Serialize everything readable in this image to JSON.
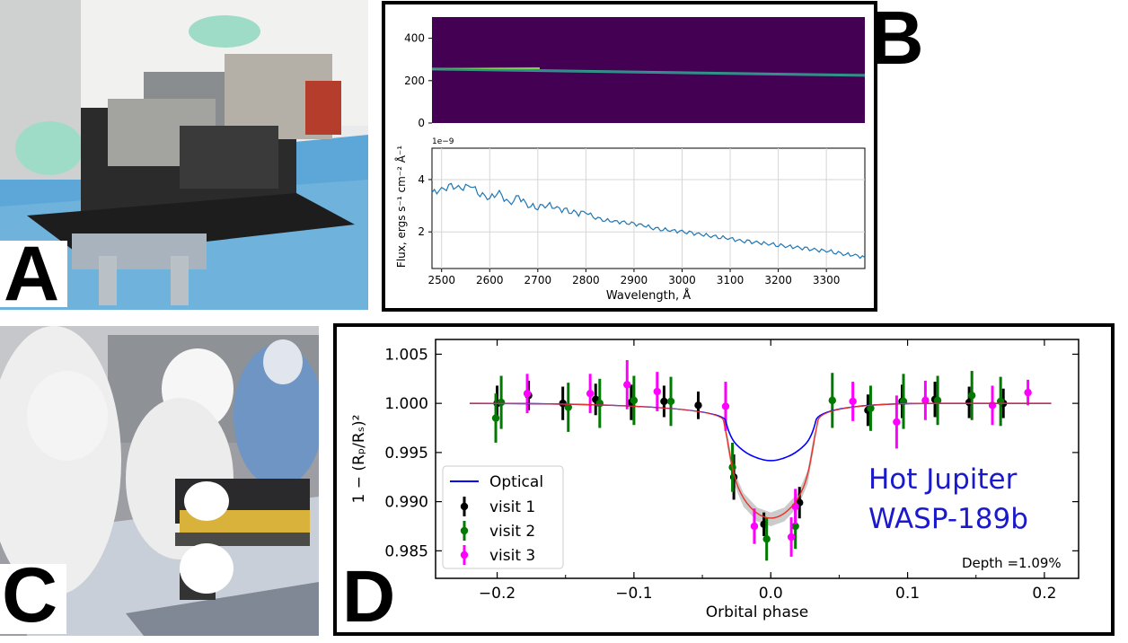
{
  "panels": {
    "a": {
      "letter": "A"
    },
    "b": {
      "letter": "B"
    },
    "c": {
      "letter": "C"
    },
    "d": {
      "letter": "D"
    }
  },
  "chart_data": [
    {
      "type": "heatmap",
      "panel": "B-top",
      "colormap": "viridis",
      "ylim": [
        0,
        500
      ],
      "yticks": [
        "0",
        "200",
        "400"
      ],
      "trace": {
        "y_start": 255,
        "y_end": 225
      }
    },
    {
      "type": "line",
      "panel": "B-bottom",
      "xlabel": "Wavelength, Å",
      "ylabel": "Flux, ergs s⁻¹ cm⁻² Å⁻¹",
      "y_scale_label": "1e−9",
      "xlim": [
        2480,
        3380
      ],
      "ylim": [
        0.6,
        5.2
      ],
      "xticks": [
        "2500",
        "2600",
        "2700",
        "2800",
        "2900",
        "3000",
        "3100",
        "3200",
        "3300"
      ],
      "yticks": [
        "2",
        "4"
      ],
      "grid": true,
      "color": "#1f77b4",
      "x": [
        2480,
        2500,
        2520,
        2540,
        2560,
        2580,
        2600,
        2620,
        2640,
        2660,
        2680,
        2700,
        2720,
        2740,
        2760,
        2780,
        2800,
        2820,
        2840,
        2860,
        2880,
        2900,
        2920,
        2940,
        2960,
        2980,
        3000,
        3020,
        3040,
        3060,
        3080,
        3100,
        3120,
        3140,
        3160,
        3180,
        3200,
        3220,
        3240,
        3260,
        3280,
        3300,
        3320,
        3340,
        3360,
        3380
      ],
      "y": [
        3.5,
        3.6,
        3.75,
        3.65,
        3.8,
        3.45,
        3.3,
        3.5,
        3.05,
        3.35,
        3.0,
        2.95,
        3.05,
        2.9,
        2.8,
        2.7,
        2.75,
        2.55,
        2.45,
        2.4,
        2.35,
        2.3,
        2.25,
        2.15,
        2.1,
        2.05,
        2.0,
        1.95,
        1.9,
        1.85,
        1.8,
        1.75,
        1.65,
        1.62,
        1.58,
        1.55,
        1.5,
        1.45,
        1.4,
        1.35,
        1.3,
        1.28,
        1.22,
        1.15,
        1.1,
        1.02
      ]
    },
    {
      "type": "scatter",
      "panel": "D",
      "xlabel": "Orbital phase",
      "ylabel": "1 − (Rₚ/Rₛ)²",
      "xlim": [
        -0.245,
        0.225
      ],
      "ylim": [
        0.9822,
        1.0065
      ],
      "xticks": [
        {
          "v": -0.2,
          "t": "−0.2"
        },
        {
          "v": -0.1,
          "t": "−0.1"
        },
        {
          "v": 0.0,
          "t": "0.0"
        },
        {
          "v": 0.1,
          "t": "0.1"
        },
        {
          "v": 0.2,
          "t": "0.2"
        }
      ],
      "yticks": [
        {
          "v": 0.985,
          "t": "0.985"
        },
        {
          "v": 0.99,
          "t": "0.990"
        },
        {
          "v": 0.995,
          "t": "0.995"
        },
        {
          "v": 1.0,
          "t": "1.000"
        },
        {
          "v": 1.005,
          "t": "1.005"
        }
      ],
      "annotation": [
        "Hot Jupiter",
        "WASP-189b"
      ],
      "depth_text": "Depth =1.09%",
      "legend": {
        "placement": "lower-left"
      },
      "models": [
        {
          "name": "Optical",
          "color": "#0000ff",
          "x": [
            -0.22,
            -0.036,
            -0.03,
            -0.02,
            -0.01,
            0.0,
            0.01,
            0.02,
            0.03,
            0.036,
            0.205
          ],
          "y": [
            1.0,
            1.0,
            0.9965,
            0.9951,
            0.9944,
            0.9941,
            0.9944,
            0.9951,
            0.9965,
            1.0,
            1.0
          ]
        },
        {
          "color": "#e8322a",
          "x": [
            -0.22,
            -0.037,
            -0.032,
            -0.027,
            -0.02,
            -0.01,
            0.0,
            0.01,
            0.02,
            0.027,
            0.032,
            0.037,
            0.205
          ],
          "y": [
            1.0,
            1.0,
            0.9965,
            0.9925,
            0.9902,
            0.9887,
            0.9882,
            0.9887,
            0.9902,
            0.9925,
            0.9965,
            1.0,
            1.0
          ]
        }
      ],
      "series": [
        {
          "name": "visit 1",
          "color": "#000000",
          "points": [
            [
              -0.2,
              1.0,
              0.0018
            ],
            [
              -0.177,
              1.0008,
              0.0015
            ],
            [
              -0.152,
              1.0,
              0.0017
            ],
            [
              -0.128,
              1.0004,
              0.0016
            ],
            [
              -0.102,
              1.0001,
              0.0018
            ],
            [
              -0.078,
              1.0002,
              0.0016
            ],
            [
              -0.053,
              0.9998,
              0.0014
            ],
            [
              -0.027,
              0.9925,
              0.0023
            ],
            [
              -0.005,
              0.9877,
              0.0012
            ],
            [
              0.021,
              0.9899,
              0.0016
            ],
            [
              0.071,
              0.9993,
              0.0016
            ],
            [
              0.096,
              1.0002,
              0.0017
            ],
            [
              0.12,
              1.0004,
              0.0018
            ],
            [
              0.145,
              1.0001,
              0.0016
            ],
            [
              0.17,
              1.0,
              0.0015
            ]
          ]
        },
        {
          "name": "visit 2",
          "color": "#007a00",
          "points": [
            [
              -0.201,
              0.9985,
              0.0025
            ],
            [
              -0.197,
              1.0001,
              0.0027
            ],
            [
              -0.148,
              0.9996,
              0.0025
            ],
            [
              -0.125,
              1.0,
              0.0025
            ],
            [
              -0.1,
              1.0003,
              0.0025
            ],
            [
              -0.073,
              1.0002,
              0.0025
            ],
            [
              -0.028,
              0.9935,
              0.0025
            ],
            [
              -0.003,
              0.9862,
              0.0022
            ],
            [
              0.018,
              0.9875,
              0.0023
            ],
            [
              0.045,
              1.0003,
              0.0028
            ],
            [
              0.073,
              0.9995,
              0.0023
            ],
            [
              0.097,
              1.0002,
              0.0028
            ],
            [
              0.122,
              1.0003,
              0.0025
            ],
            [
              0.147,
              1.0008,
              0.0025
            ],
            [
              0.168,
              1.0002,
              0.0025
            ]
          ]
        },
        {
          "name": "visit 3",
          "color": "#ff00ff",
          "points": [
            [
              -0.178,
              1.001,
              0.002
            ],
            [
              -0.132,
              1.001,
              0.002
            ],
            [
              -0.105,
              1.0019,
              0.0025
            ],
            [
              -0.083,
              1.0012,
              0.002
            ],
            [
              -0.033,
              0.9997,
              0.0025
            ],
            [
              -0.012,
              0.9875,
              0.0018
            ],
            [
              0.015,
              0.9864,
              0.002
            ],
            [
              0.018,
              0.9895,
              0.0018
            ],
            [
              0.06,
              1.0002,
              0.002
            ],
            [
              0.092,
              0.9981,
              0.0027
            ],
            [
              0.113,
              1.0003,
              0.002
            ],
            [
              0.162,
              0.9998,
              0.002
            ],
            [
              0.188,
              1.0011,
              0.0013
            ]
          ]
        }
      ]
    }
  ]
}
